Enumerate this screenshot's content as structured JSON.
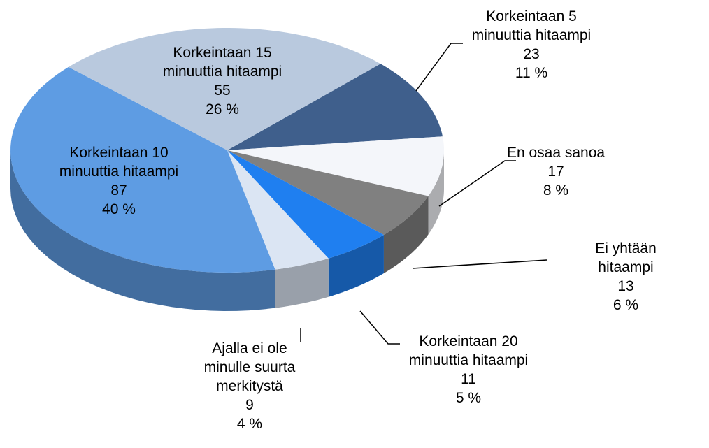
{
  "chart_data": {
    "type": "pie3d",
    "categories": [
      "Korkeintaan 5\nminuuttia hitaampi",
      "En osaa sanoa",
      "Ei yhtään hitaampi",
      "Korkeintaan 20\nminuuttia hitaampi",
      "Ajalla ei ole\nminulle suurta\nmerkitystä",
      "Korkeintaan 10\nminuuttia hitaampi",
      "Korkeintaan 15\nminuuttia hitaampi"
    ],
    "values": [
      23,
      17,
      13,
      11,
      9,
      87,
      55
    ],
    "percentages": [
      11,
      8,
      6,
      5,
      4,
      40,
      26
    ],
    "percentage_labels": [
      "11 %",
      "8 %",
      "6 %",
      "5 %",
      "4 %",
      "40 %",
      "26 %"
    ],
    "colors": [
      "#3f5f8c",
      "#f4f6fa",
      "#808080",
      "#1f7ff0",
      "#dbe5f3",
      "#5e9ce3",
      "#b9c9de"
    ]
  }
}
